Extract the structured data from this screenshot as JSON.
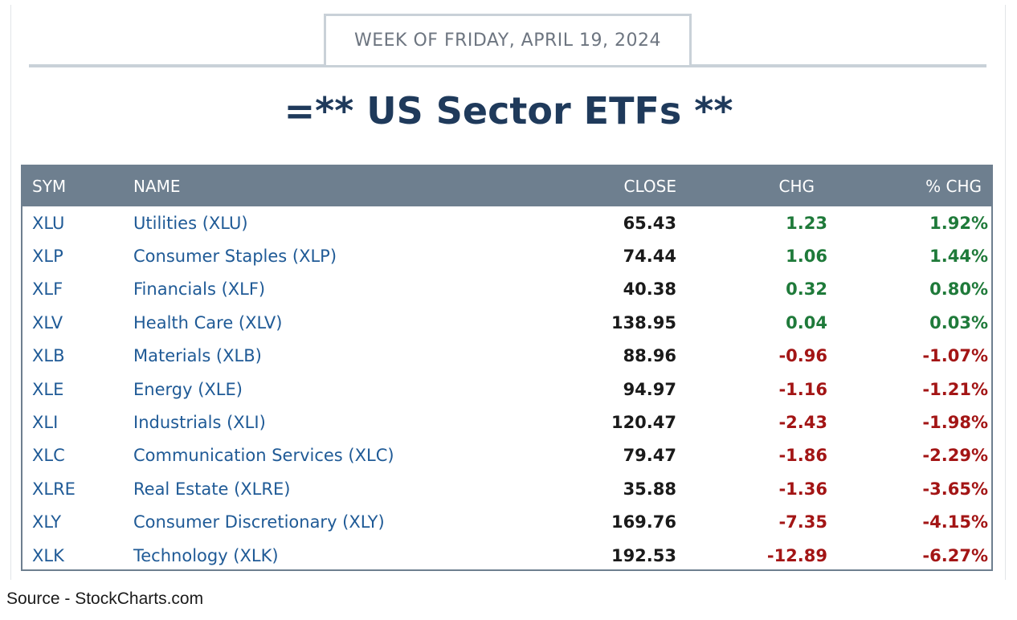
{
  "header": {
    "week_label": "WEEK OF FRIDAY, APRIL 19, 2024",
    "title": "=** US Sector ETFs **"
  },
  "table": {
    "columns": [
      "SYM",
      "NAME",
      "CLOSE",
      "CHG",
      "% CHG"
    ],
    "rows": [
      {
        "sym": "XLU",
        "name": "Utilities (XLU)",
        "close": "65.43",
        "chg": "1.23",
        "pct": "1.92%",
        "dir": "pos"
      },
      {
        "sym": "XLP",
        "name": "Consumer Staples (XLP)",
        "close": "74.44",
        "chg": "1.06",
        "pct": "1.44%",
        "dir": "pos"
      },
      {
        "sym": "XLF",
        "name": "Financials (XLF)",
        "close": "40.38",
        "chg": "0.32",
        "pct": "0.80%",
        "dir": "pos"
      },
      {
        "sym": "XLV",
        "name": "Health Care (XLV)",
        "close": "138.95",
        "chg": "0.04",
        "pct": "0.03%",
        "dir": "pos"
      },
      {
        "sym": "XLB",
        "name": "Materials (XLB)",
        "close": "88.96",
        "chg": "-0.96",
        "pct": "-1.07%",
        "dir": "neg"
      },
      {
        "sym": "XLE",
        "name": "Energy (XLE)",
        "close": "94.97",
        "chg": "-1.16",
        "pct": "-1.21%",
        "dir": "neg"
      },
      {
        "sym": "XLI",
        "name": "Industrials (XLI)",
        "close": "120.47",
        "chg": "-2.43",
        "pct": "-1.98%",
        "dir": "neg"
      },
      {
        "sym": "XLC",
        "name": "Communication Services (XLC)",
        "close": "79.47",
        "chg": "-1.86",
        "pct": "-2.29%",
        "dir": "neg"
      },
      {
        "sym": "XLRE",
        "name": "Real Estate (XLRE)",
        "close": "35.88",
        "chg": "-1.36",
        "pct": "-3.65%",
        "dir": "neg"
      },
      {
        "sym": "XLY",
        "name": "Consumer Discretionary (XLY)",
        "close": "169.76",
        "chg": "-7.35",
        "pct": "-4.15%",
        "dir": "neg"
      },
      {
        "sym": "XLK",
        "name": "Technology (XLK)",
        "close": "192.53",
        "chg": "-12.89",
        "pct": "-6.27%",
        "dir": "neg"
      }
    ]
  },
  "footer": {
    "source": "Source - StockCharts.com"
  },
  "colors": {
    "header_bg": "#6e7f8f",
    "title": "#1f3a5b",
    "link_blue": "#1f5a96",
    "positive": "#1f7a3a",
    "negative": "#a31515"
  }
}
